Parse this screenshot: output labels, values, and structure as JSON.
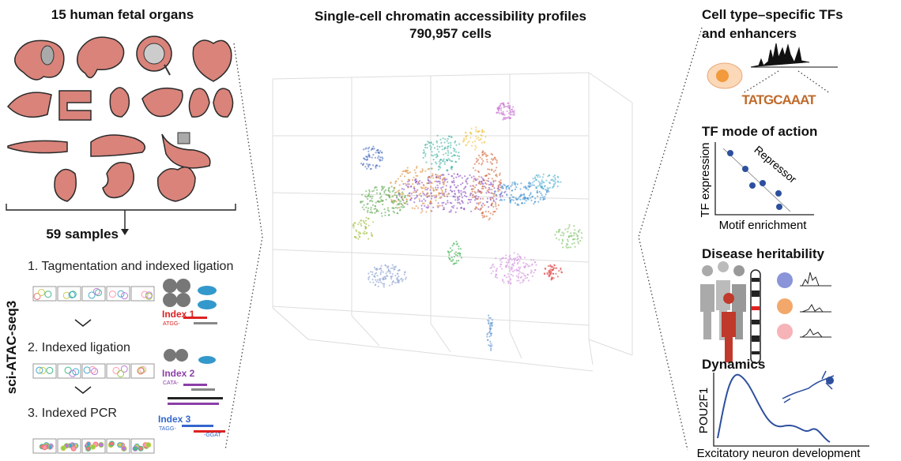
{
  "left": {
    "title": "15 human fetal organs",
    "samples": "59 samples",
    "method": "sci-ATAC-seq3",
    "steps": [
      {
        "label": "1. Tagmentation and indexed ligation",
        "index": "Index 1",
        "sequence": "ATGG-"
      },
      {
        "label": "2. Indexed ligation",
        "index": "Index 2",
        "sequence": "CATA-"
      },
      {
        "label": "3. Indexed PCR",
        "index": "Index 3",
        "sequence": "TAGG-",
        "sequence_end": "-GGAT"
      }
    ]
  },
  "center": {
    "title": "Single-cell chromatin accessibility profiles",
    "subtitle": "790,957 cells"
  },
  "right": {
    "panels": [
      {
        "title": [
          "Cell type–specific TFs",
          "and enhancers"
        ],
        "motif": "TATGCAAAT"
      },
      {
        "title": "TF mode of action",
        "y_label": "TF expression",
        "x_label": "Motif enrichment",
        "annotation": "Repressor"
      },
      {
        "title": "Disease heritability"
      },
      {
        "title": "Dynamics",
        "y_label": "POU2F1",
        "x_label": "Excitatory neuron development"
      }
    ]
  }
}
